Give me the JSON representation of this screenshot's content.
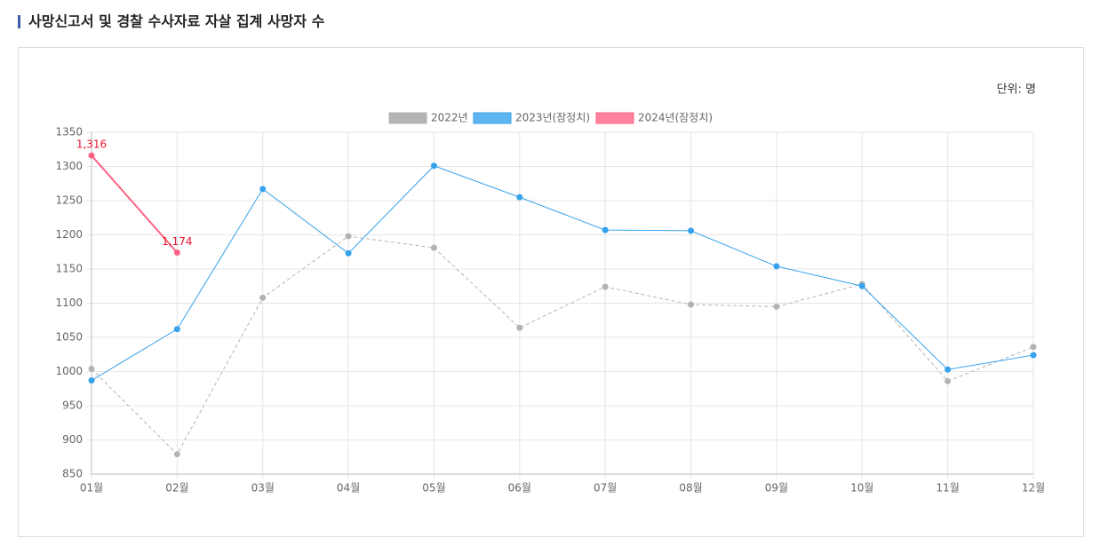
{
  "chart_data": {
    "type": "line",
    "title": "사망신고서 및 경찰 수사자료 자살 집계 사망자 수",
    "unit_label": "단위: 명",
    "categories": [
      "01월",
      "02월",
      "03월",
      "04월",
      "05월",
      "06월",
      "07월",
      "08월",
      "09월",
      "10월",
      "11월",
      "12월"
    ],
    "series": [
      {
        "name": "2022년",
        "color": "#b3b3b3",
        "dashed": true,
        "values": [
          1004,
          879,
          1108,
          1198,
          1181,
          1064,
          1124,
          1098,
          1095,
          1128,
          986,
          1036
        ]
      },
      {
        "name": "2023년(잠정치)",
        "color": "#36a2eb",
        "dashed": false,
        "values": [
          987,
          1062,
          1267,
          1173,
          1301,
          1255,
          1207,
          1206,
          1154,
          1125,
          1003,
          1024
        ]
      },
      {
        "name": "2024년(잠정치)",
        "color": "#ff6384",
        "dashed": false,
        "values": [
          1316,
          1174,
          null,
          null,
          null,
          null,
          null,
          null,
          null,
          null,
          null,
          null
        ],
        "value_labels": [
          "1,316",
          "1,174",
          null,
          null,
          null,
          null,
          null,
          null,
          null,
          null,
          null,
          null
        ]
      }
    ],
    "ylim": [
      850,
      1350
    ],
    "yticks": [
      850,
      900,
      950,
      1000,
      1050,
      1100,
      1150,
      1200,
      1250,
      1300,
      1350
    ],
    "grid": true
  }
}
